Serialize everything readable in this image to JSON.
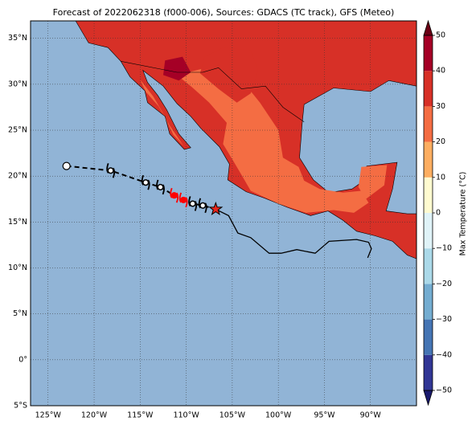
{
  "chart_data": {
    "type": "map",
    "title": "Forecast of 2022062318 (f000-006), Sources: GDACS (TC track), GFS (Meteo)",
    "xlim": [
      -126.9,
      -85
    ],
    "ylim": [
      -5,
      36.9
    ],
    "xticks": [
      {
        "value": -125,
        "label": "125°W"
      },
      {
        "value": -120,
        "label": "120°W"
      },
      {
        "value": -115,
        "label": "115°W"
      },
      {
        "value": -110,
        "label": "110°W"
      },
      {
        "value": -105,
        "label": "105°W"
      },
      {
        "value": -100,
        "label": "100°W"
      },
      {
        "value": -95,
        "label": "95°W"
      },
      {
        "value": -90,
        "label": "90°W"
      }
    ],
    "yticks": [
      {
        "value": -5,
        "label": "5°S"
      },
      {
        "value": 0,
        "label": "0°"
      },
      {
        "value": 5,
        "label": "5°N"
      },
      {
        "value": 10,
        "label": "10°N"
      },
      {
        "value": 15,
        "label": "15°N"
      },
      {
        "value": 20,
        "label": "20°N"
      },
      {
        "value": 25,
        "label": "25°N"
      },
      {
        "value": 30,
        "label": "30°N"
      },
      {
        "value": 35,
        "label": "35°N"
      }
    ],
    "grid": true,
    "track": {
      "lon": [
        -123,
        -118.2,
        -114.4,
        -112.8,
        -111.3,
        -110.3,
        -109.3,
        -108.2,
        -106.8
      ],
      "lat": [
        21.1,
        20.6,
        19.3,
        18.8,
        17.9,
        17.4,
        17.0,
        16.8,
        16.4
      ],
      "colors": [
        "#ffffff",
        "#000000",
        "#000000",
        "#000000",
        "#ff0000",
        "#ff0000",
        "#000000",
        "#000000",
        "#e8251c"
      ]
    },
    "colorbar": {
      "label": "Max Temperature (°C)",
      "lim": [
        -50,
        50
      ],
      "ticks": [
        {
          "value": -50,
          "label": "−50"
        },
        {
          "value": -40,
          "label": "−40"
        },
        {
          "value": -30,
          "label": "−30"
        },
        {
          "value": -20,
          "label": "−20"
        },
        {
          "value": -10,
          "label": "−10"
        },
        0,
        10,
        20,
        30,
        40,
        50
      ],
      "colors": [
        "#313695",
        "#4575b4",
        "#74add1",
        "#abd9e9",
        "#e0f3f8",
        "#fffbd0",
        "#fdae61",
        "#f46d43",
        "#d73027",
        "#a50026"
      ],
      "under": "#1a1a6e",
      "over": "#6b0015"
    }
  }
}
